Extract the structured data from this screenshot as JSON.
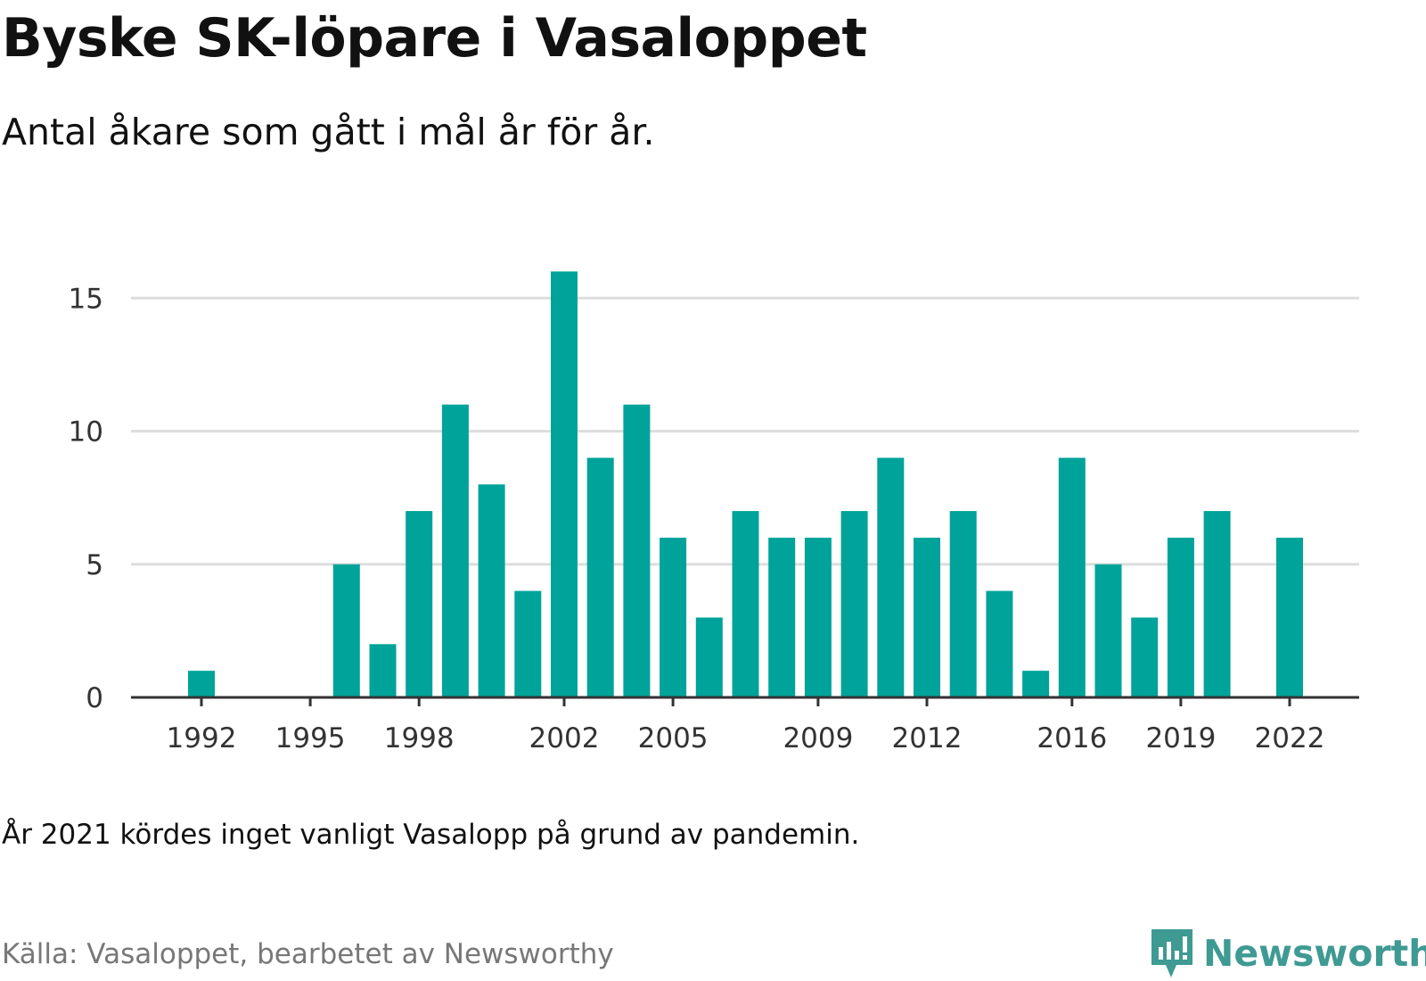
{
  "title": "Byske SK-löpare i Vasaloppet",
  "subtitle": "Antal åkare som gått i mål år för år.",
  "note": "År 2021 kördes inget vanligt Vasalopp på grund av pandemin.",
  "source": "Källa: Vasaloppet, bearbetet av Newsworthy",
  "logo": {
    "text": "Newsworthy",
    "icon": "newsworthy-logo-icon",
    "color": "#3e9a92"
  },
  "colors": {
    "bar": "#00a39a",
    "grid": "#dddddd",
    "axis": "#333333"
  },
  "chart_data": {
    "type": "bar",
    "x": [
      1992,
      1993,
      1994,
      1995,
      1996,
      1997,
      1998,
      1999,
      2000,
      2001,
      2002,
      2003,
      2004,
      2005,
      2006,
      2007,
      2008,
      2009,
      2010,
      2011,
      2012,
      2013,
      2014,
      2015,
      2016,
      2017,
      2018,
      2019,
      2020,
      2021,
      2022
    ],
    "values": [
      1,
      0,
      0,
      0,
      5,
      2,
      7,
      11,
      8,
      4,
      16,
      9,
      11,
      6,
      3,
      7,
      6,
      6,
      7,
      9,
      6,
      7,
      4,
      1,
      9,
      5,
      3,
      6,
      7,
      null,
      6
    ],
    "x_ticks": [
      "1992",
      "1995",
      "1998",
      "2002",
      "2005",
      "2009",
      "2012",
      "2016",
      "2019",
      "2022"
    ],
    "y_ticks": [
      "0",
      "5",
      "10",
      "15"
    ],
    "ylim": [
      0,
      16
    ],
    "grid": true
  }
}
